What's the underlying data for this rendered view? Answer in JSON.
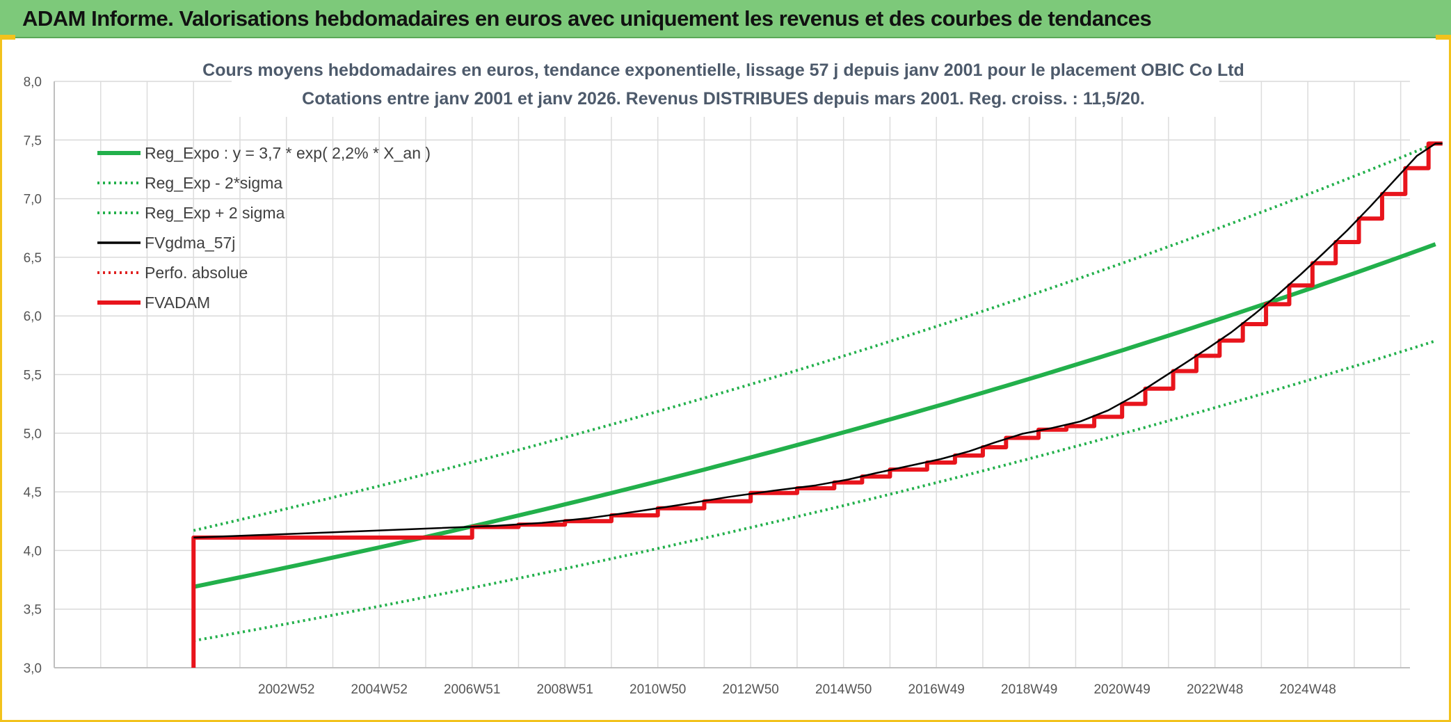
{
  "banner": {
    "title": "ADAM Informe. Valorisations hebdomadaires en euros avec uniquement les revenus et des courbes de tendances"
  },
  "chart_data": {
    "type": "line",
    "title": "Cours moyens hebdomadaires en euros, tendance exponentielle, lissage 57 j depuis janv 2001 pour le placement OBIC Co Ltd",
    "subtitle": "Cotations entre janv 2001 et janv 2026. Revenus DISTRIBUES depuis mars 2001. Reg. croiss. : 11,5/20.",
    "ylim": [
      3.0,
      8.0
    ],
    "yticks": [
      "3,0",
      "3,5",
      "4,0",
      "4,5",
      "5,0",
      "5,5",
      "6,0",
      "6,5",
      "7,0",
      "7,5",
      "8,0"
    ],
    "x_range_years": [
      1998.0,
      2027.2
    ],
    "xticks": [
      {
        "label": "2002W52",
        "year": 2003.0
      },
      {
        "label": "2004W52",
        "year": 2005.0
      },
      {
        "label": "2006W51",
        "year": 2007.0
      },
      {
        "label": "2008W51",
        "year": 2009.0
      },
      {
        "label": "2010W50",
        "year": 2011.0
      },
      {
        "label": "2012W50",
        "year": 2013.0
      },
      {
        "label": "2014W50",
        "year": 2015.0
      },
      {
        "label": "2016W49",
        "year": 2017.0
      },
      {
        "label": "2018W49",
        "year": 2019.0
      },
      {
        "label": "2020W49",
        "year": 2021.0
      },
      {
        "label": "2022W48",
        "year": 2023.0
      },
      {
        "label": "2024W48",
        "year": 2025.0
      }
    ],
    "legend_position": "top-left",
    "series": [
      {
        "name": "Reg_Expo : y = 3,7 * exp( 2,2% *  X_an )",
        "color": "#22b04b",
        "style": "solid-thick",
        "kind": "exp",
        "a": 3.69,
        "b": 0.0218,
        "start_year": 2001.0
      },
      {
        "name": "Reg_Exp - 2*sigma",
        "color": "#22b04b",
        "style": "dotted",
        "kind": "exp",
        "a": 3.23,
        "b": 0.0218,
        "start_year": 2001.0
      },
      {
        "name": "Reg_Exp + 2 sigma",
        "color": "#22b04b",
        "style": "dotted",
        "kind": "exp",
        "a": 4.17,
        "b": 0.0218,
        "start_year": 2001.0
      },
      {
        "name": "FVgdma_57j",
        "color": "#000000",
        "style": "solid",
        "kind": "smooth_of_fvadam"
      },
      {
        "name": "Perfo. absolue",
        "color": "#e02020",
        "style": "dotted",
        "kind": "none"
      },
      {
        "name": "FVADAM",
        "color": "#e8141c",
        "style": "solid-thick",
        "kind": "step",
        "points": [
          [
            2001.0,
            3.0
          ],
          [
            2001.0,
            4.11
          ],
          [
            2007.0,
            4.2
          ],
          [
            2008.0,
            4.22
          ],
          [
            2009.0,
            4.25
          ],
          [
            2010.0,
            4.3
          ],
          [
            2011.0,
            4.36
          ],
          [
            2012.0,
            4.42
          ],
          [
            2013.0,
            4.49
          ],
          [
            2014.0,
            4.53
          ],
          [
            2014.8,
            4.58
          ],
          [
            2015.4,
            4.63
          ],
          [
            2016.0,
            4.69
          ],
          [
            2016.8,
            4.75
          ],
          [
            2017.4,
            4.81
          ],
          [
            2018.0,
            4.88
          ],
          [
            2018.5,
            4.96
          ],
          [
            2019.2,
            5.03
          ],
          [
            2019.8,
            5.06
          ],
          [
            2020.4,
            5.14
          ],
          [
            2021.0,
            5.25
          ],
          [
            2021.5,
            5.38
          ],
          [
            2022.1,
            5.53
          ],
          [
            2022.6,
            5.66
          ],
          [
            2023.1,
            5.79
          ],
          [
            2023.6,
            5.93
          ],
          [
            2024.1,
            6.1
          ],
          [
            2024.6,
            6.26
          ],
          [
            2025.1,
            6.45
          ],
          [
            2025.6,
            6.63
          ],
          [
            2026.1,
            6.83
          ],
          [
            2026.6,
            7.04
          ],
          [
            2027.1,
            7.26
          ],
          [
            2027.6,
            7.47
          ],
          [
            2027.9,
            7.47
          ]
        ]
      }
    ]
  }
}
